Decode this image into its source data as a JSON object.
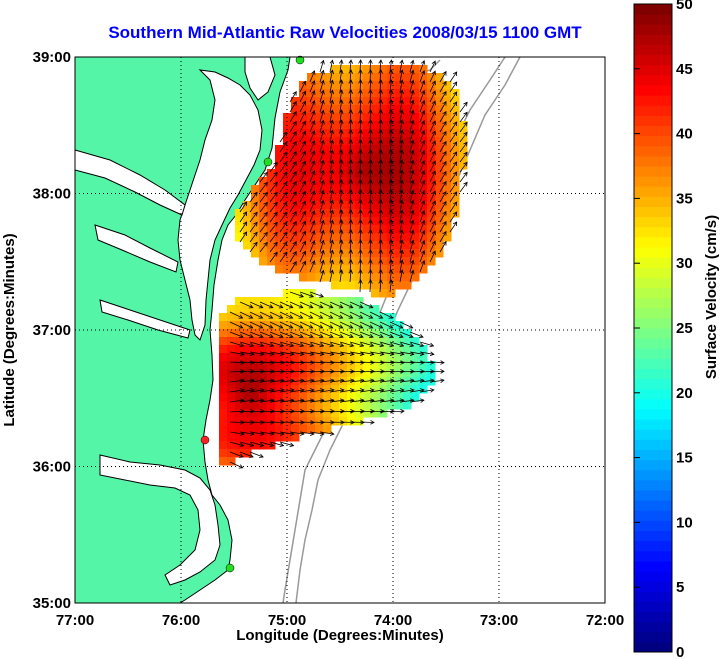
{
  "title": "Southern Mid-Atlantic Raw Velocities 2008/03/15 1100 GMT",
  "axes": {
    "xlabel": "Longitude (Degrees:Minutes)",
    "ylabel": "Latitude (Degrees:Minutes)",
    "x_ticks": [
      "77:00",
      "76:00",
      "75:00",
      "74:00",
      "73:00",
      "72:00"
    ],
    "y_ticks": [
      "39:00",
      "38:00",
      "37:00",
      "36:00",
      "35:00"
    ],
    "x_range": [
      -77,
      -72
    ],
    "y_range": [
      35,
      39
    ],
    "grid": true
  },
  "colorbar": {
    "label": "Surface Velocity (cm/s)",
    "ticks": [
      "0",
      "5",
      "10",
      "15",
      "20",
      "25",
      "30",
      "35",
      "40",
      "45",
      "50"
    ],
    "range": [
      0,
      50
    ]
  },
  "colors": {
    "land": "#55f5a8",
    "coast": "#000000",
    "bathymetry": "#999999",
    "site_marker": "#22dd22",
    "site_marker_red": "#ff2222",
    "grid": "#000000",
    "title": "#0000ff"
  },
  "velocity_field": {
    "region_south": {
      "speed_min": 20,
      "speed_max": 50
    },
    "region_north": {
      "speed_min": 25,
      "speed_max": 50
    }
  }
}
